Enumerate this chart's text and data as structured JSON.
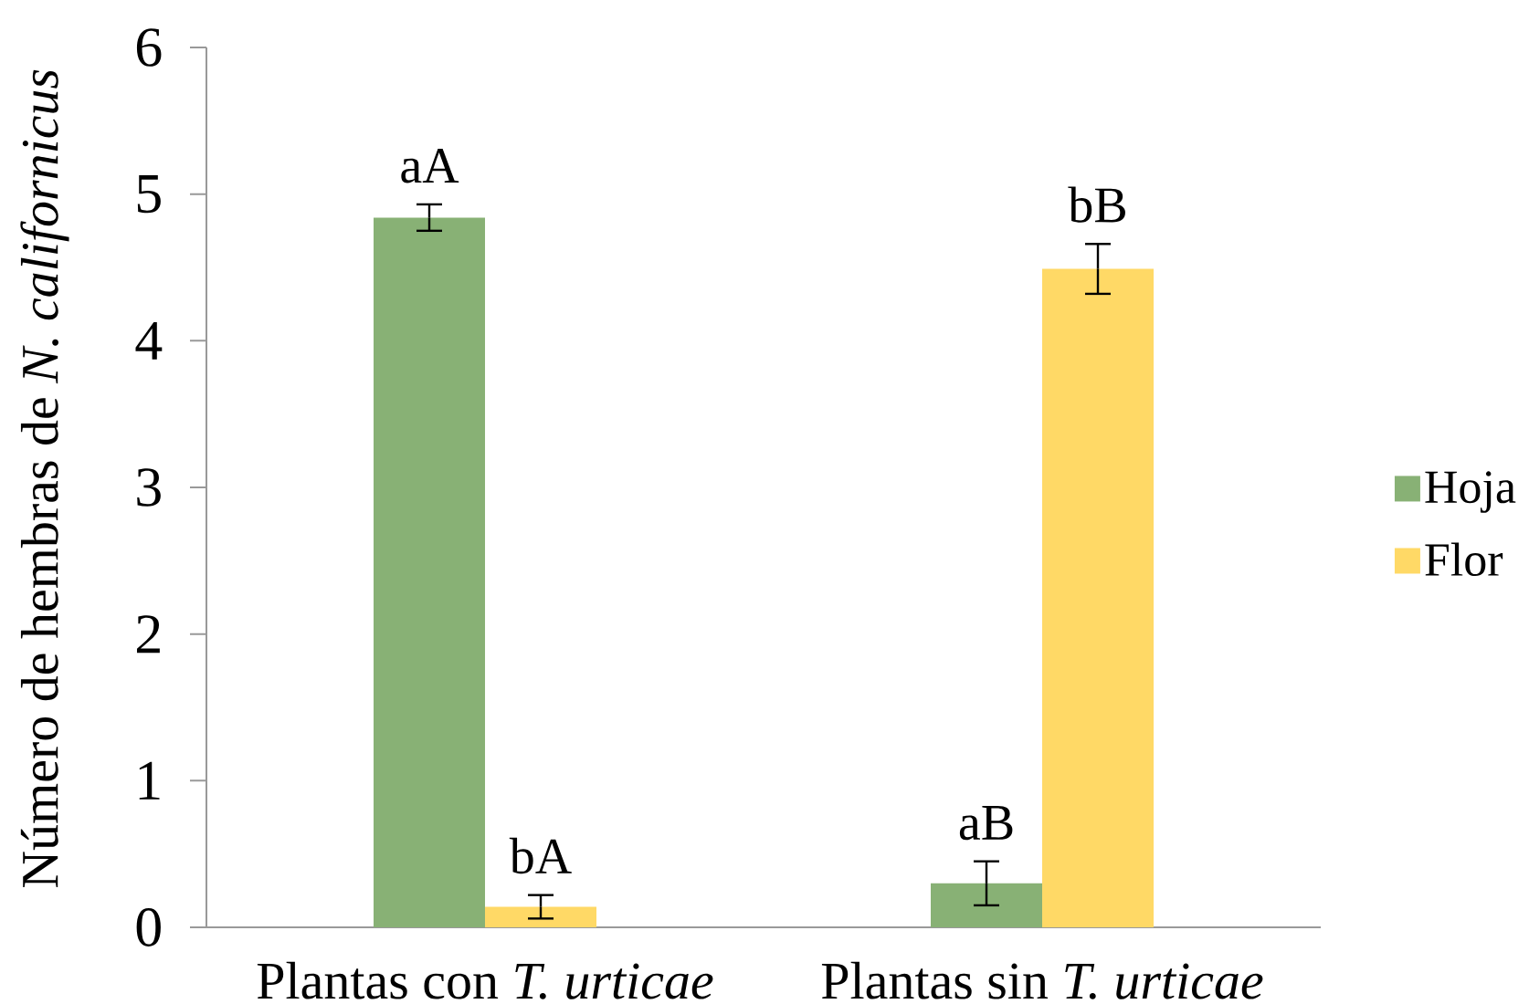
{
  "chart_data": {
    "type": "bar",
    "ylabel": "Número de hembras de *N. californicus*",
    "categories": [
      "Plantas con *T. urticae*",
      "Plantas sin *T. urticae*"
    ],
    "series": [
      {
        "name": "Hoja",
        "color": "#88b175",
        "values": [
          4.84,
          0.3
        ],
        "errors": [
          0.09,
          0.15
        ],
        "value_labels": [
          "aA",
          "aB"
        ]
      },
      {
        "name": "Flor",
        "color": "#ffd966",
        "values": [
          0.14,
          4.49
        ],
        "errors": [
          0.08,
          0.17
        ],
        "value_labels": [
          "bA",
          "bB"
        ]
      }
    ],
    "ylim": [
      0,
      6
    ],
    "yticks": [
      0,
      1,
      2,
      3,
      4,
      5,
      6
    ],
    "legend": "right"
  }
}
